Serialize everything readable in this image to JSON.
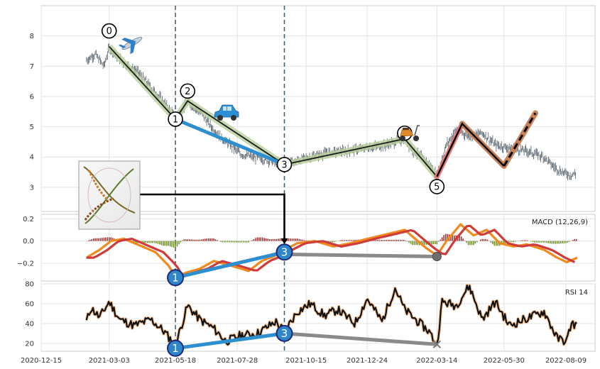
{
  "chart_data": {
    "type": "line",
    "x_axis": {
      "type": "date",
      "tick_labels": [
        "2020-12-15",
        "2021-03-03",
        "2021-05-18",
        "2021-07-28",
        "2021-10-15",
        "2021-12-24",
        "2022-03-14",
        "2022-05-30",
        "2022-08-09"
      ]
    },
    "panels": [
      {
        "name": "price",
        "type": "ohlc",
        "ylim": [
          2.2,
          9.0
        ],
        "yticks": [
          3,
          4,
          5,
          6,
          7,
          8
        ],
        "price_path": [
          [
            "2021-02-05",
            7.2
          ],
          [
            "2021-02-15",
            7.4
          ],
          [
            "2021-02-25",
            7.0
          ],
          [
            "2021-03-03",
            7.6
          ],
          [
            "2021-03-20",
            7.1
          ],
          [
            "2021-04-05",
            6.8
          ],
          [
            "2021-04-20",
            6.3
          ],
          [
            "2021-05-05",
            5.8
          ],
          [
            "2021-05-18",
            5.3
          ],
          [
            "2021-06-01",
            5.8
          ],
          [
            "2021-06-15",
            5.5
          ],
          [
            "2021-07-01",
            4.9
          ],
          [
            "2021-07-15",
            4.5
          ],
          [
            "2021-08-01",
            4.1
          ],
          [
            "2021-08-15",
            4.0
          ],
          [
            "2021-09-01",
            3.9
          ],
          [
            "2021-09-10",
            3.8
          ],
          [
            "2021-10-01",
            3.85
          ],
          [
            "2021-10-20",
            4.0
          ],
          [
            "2021-11-10",
            4.15
          ],
          [
            "2021-12-01",
            4.2
          ],
          [
            "2021-12-24",
            4.3
          ],
          [
            "2022-01-15",
            4.4
          ],
          [
            "2022-02-05",
            4.6
          ],
          [
            "2022-02-15",
            4.2
          ],
          [
            "2022-03-01",
            3.9
          ],
          [
            "2022-03-14",
            3.4
          ],
          [
            "2022-03-25",
            4.4
          ],
          [
            "2022-04-05",
            4.9
          ],
          [
            "2022-04-20",
            4.7
          ],
          [
            "2022-05-05",
            4.8
          ],
          [
            "2022-05-20",
            4.4
          ],
          [
            "2022-06-05",
            4.3
          ],
          [
            "2022-06-25",
            4.2
          ],
          [
            "2022-07-15",
            4.0
          ],
          [
            "2022-07-25",
            3.7
          ],
          [
            "2022-08-05",
            3.5
          ],
          [
            "2022-08-15",
            3.4
          ],
          [
            "2022-08-20",
            3.45
          ]
        ],
        "elliott_wave": [
          {
            "label": "0",
            "date": "2021-03-03",
            "y": 7.65
          },
          {
            "label": "1",
            "date": "2021-05-18",
            "y": 5.25
          },
          {
            "label": "2",
            "date": "2021-06-01",
            "y": 5.85
          },
          {
            "label": "3",
            "date": "2021-09-20",
            "y": 3.75
          },
          {
            "label": "4",
            "date": "2022-02-05",
            "y": 4.6
          },
          {
            "label": "5",
            "date": "2022-03-14",
            "y": 3.35
          }
        ],
        "projection": [
          [
            "2022-03-14",
            3.35
          ],
          [
            "2022-04-12",
            5.1
          ],
          [
            "2022-05-30",
            3.7
          ],
          [
            "2022-07-05",
            5.45
          ]
        ],
        "divergence_line": [
          [
            "2021-05-18",
            5.25
          ],
          [
            "2021-09-20",
            3.75
          ]
        ],
        "icons": [
          "airplane",
          "car",
          "scooter"
        ]
      },
      {
        "name": "macd",
        "label": "MACD (12,26,9)",
        "ylim": [
          -0.36,
          0.24
        ],
        "yticks": [
          -0.2,
          0.0,
          0.2
        ],
        "macd_path": [
          [
            "2021-02-05",
            -0.15
          ],
          [
            "2021-02-20",
            -0.08
          ],
          [
            "2021-03-05",
            0.0
          ],
          [
            "2021-03-20",
            0.02
          ],
          [
            "2021-04-10",
            -0.05
          ],
          [
            "2021-04-25",
            -0.1
          ],
          [
            "2021-05-10",
            -0.22
          ],
          [
            "2021-05-18",
            -0.32
          ],
          [
            "2021-06-01",
            -0.28
          ],
          [
            "2021-06-15",
            -0.25
          ],
          [
            "2021-07-01",
            -0.18
          ],
          [
            "2021-07-20",
            -0.22
          ],
          [
            "2021-08-10",
            -0.27
          ],
          [
            "2021-08-25",
            -0.18
          ],
          [
            "2021-09-10",
            -0.13
          ],
          [
            "2021-09-20",
            -0.08
          ],
          [
            "2021-10-05",
            -0.02
          ],
          [
            "2021-10-25",
            0.0
          ],
          [
            "2021-11-15",
            -0.05
          ],
          [
            "2021-12-05",
            -0.02
          ],
          [
            "2021-12-24",
            0.02
          ],
          [
            "2022-01-15",
            0.06
          ],
          [
            "2022-02-05",
            0.1
          ],
          [
            "2022-02-20",
            0.0
          ],
          [
            "2022-03-01",
            -0.06
          ],
          [
            "2022-03-14",
            -0.13
          ],
          [
            "2022-03-25",
            0.0
          ],
          [
            "2022-04-10",
            0.15
          ],
          [
            "2022-04-25",
            0.05
          ],
          [
            "2022-05-10",
            0.1
          ],
          [
            "2022-05-25",
            -0.02
          ],
          [
            "2022-06-10",
            -0.05
          ],
          [
            "2022-06-25",
            -0.03
          ],
          [
            "2022-07-15",
            -0.08
          ],
          [
            "2022-07-30",
            -0.15
          ],
          [
            "2022-08-10",
            -0.19
          ],
          [
            "2022-08-22",
            -0.15
          ]
        ],
        "divergence_line": [
          [
            "2021-05-18",
            -0.33
          ],
          [
            "2021-09-20",
            -0.1
          ]
        ],
        "gray_line": [
          [
            "2021-09-20",
            -0.12
          ],
          [
            "2022-03-14",
            -0.14
          ]
        ]
      },
      {
        "name": "rsi",
        "label": "RSI 14",
        "ylim": [
          12,
          80
        ],
        "yticks": [
          20,
          40,
          60,
          80
        ],
        "rsi_path": [
          [
            "2021-02-05",
            42
          ],
          [
            "2021-02-10",
            56
          ],
          [
            "2021-02-20",
            46
          ],
          [
            "2021-03-03",
            62
          ],
          [
            "2021-03-15",
            44
          ],
          [
            "2021-04-01",
            38
          ],
          [
            "2021-04-20",
            44
          ],
          [
            "2021-05-05",
            32
          ],
          [
            "2021-05-18",
            18
          ],
          [
            "2021-06-01",
            58
          ],
          [
            "2021-06-15",
            44
          ],
          [
            "2021-07-01",
            35
          ],
          [
            "2021-07-15",
            22
          ],
          [
            "2021-08-01",
            28
          ],
          [
            "2021-08-20",
            30
          ],
          [
            "2021-09-10",
            42
          ],
          [
            "2021-09-20",
            32
          ],
          [
            "2021-10-05",
            52
          ],
          [
            "2021-10-20",
            60
          ],
          [
            "2021-11-05",
            48
          ],
          [
            "2021-11-20",
            54
          ],
          [
            "2021-12-10",
            40
          ],
          [
            "2021-12-24",
            65
          ],
          [
            "2022-01-10",
            42
          ],
          [
            "2022-01-25",
            76
          ],
          [
            "2022-02-05",
            54
          ],
          [
            "2022-02-20",
            42
          ],
          [
            "2022-03-05",
            32
          ],
          [
            "2022-03-14",
            18
          ],
          [
            "2022-03-20",
            62
          ],
          [
            "2022-04-05",
            58
          ],
          [
            "2022-04-20",
            78
          ],
          [
            "2022-05-05",
            44
          ],
          [
            "2022-05-20",
            62
          ],
          [
            "2022-06-05",
            38
          ],
          [
            "2022-06-25",
            45
          ],
          [
            "2022-07-15",
            52
          ],
          [
            "2022-07-30",
            25
          ],
          [
            "2022-08-10",
            22
          ],
          [
            "2022-08-15",
            40
          ],
          [
            "2022-08-22",
            38
          ]
        ],
        "divergence_line": [
          [
            "2021-05-18",
            15
          ],
          [
            "2021-09-20",
            30
          ]
        ],
        "gray_line": [
          [
            "2021-09-20",
            30
          ],
          [
            "2022-03-14",
            19
          ]
        ]
      }
    ],
    "vertical_markers": [
      "2021-05-18",
      "2021-09-20"
    ]
  }
}
